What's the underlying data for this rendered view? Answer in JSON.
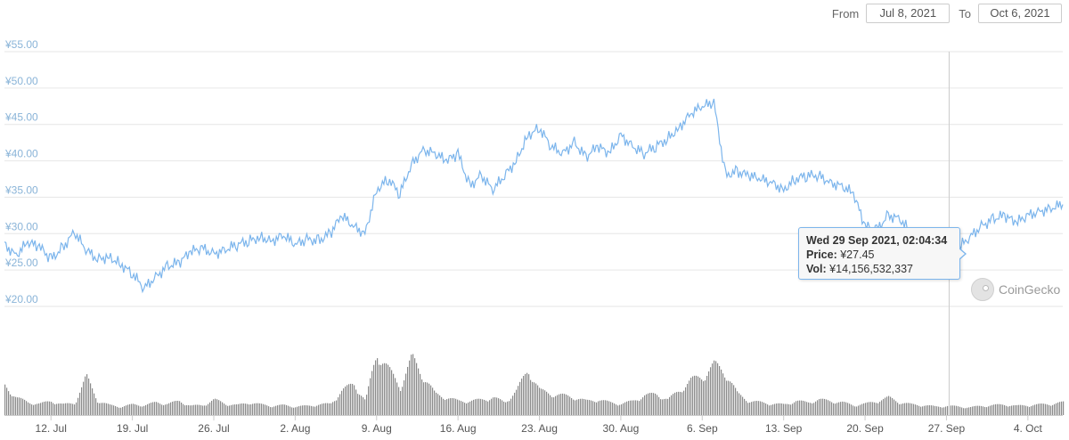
{
  "range_selector": {
    "from_label": "From",
    "from_value": "Jul 8, 2021",
    "to_label": "To",
    "to_value": "Oct 6, 2021"
  },
  "tooltip": {
    "title": "Wed 29 Sep 2021, 02:04:34",
    "price_label": "Price:",
    "price_value": "¥27.45",
    "vol_label": "Vol:",
    "vol_value": "¥14,156,532,337"
  },
  "watermark": {
    "text": "CoinGecko",
    "icon": "gecko-icon"
  },
  "colors": {
    "price_line": "#7cb5ec",
    "volume": "#8a8a8a",
    "grid": "#e6e6e6",
    "crosshair": "#cccccc"
  },
  "chart_data": [
    {
      "type": "line",
      "title": "",
      "xlabel": "",
      "ylabel": "",
      "ylim": [
        20,
        55
      ],
      "y_ticks": [
        "¥20.00",
        "¥25.00",
        "¥30.00",
        "¥35.00",
        "¥40.00",
        "¥45.00",
        "¥50.00",
        "¥55.00"
      ],
      "y_tick_values": [
        20,
        25,
        30,
        35,
        40,
        45,
        50,
        55
      ],
      "x_ticks": [
        "12. Jul",
        "19. Jul",
        "26. Jul",
        "2. Aug",
        "9. Aug",
        "16. Aug",
        "23. Aug",
        "30. Aug",
        "6. Sep",
        "13. Sep",
        "20. Sep",
        "27. Sep",
        "4. Oct"
      ],
      "x_tick_days": [
        4,
        11,
        18,
        25,
        32,
        39,
        46,
        53,
        60,
        67,
        74,
        81,
        88
      ],
      "xlim_days": [
        0,
        91
      ],
      "grid": true,
      "series": [
        {
          "x_days": [
            0,
            1,
            2,
            3,
            4,
            5,
            6,
            7,
            8,
            9,
            10,
            11,
            12,
            13,
            14,
            15,
            16,
            17,
            18,
            19,
            20,
            21,
            22,
            23,
            24,
            25,
            26,
            27,
            28,
            29,
            30,
            31,
            32,
            33,
            34,
            35,
            36,
            37,
            38,
            39,
            40,
            41,
            42,
            43,
            44,
            45,
            46,
            47,
            48,
            49,
            50,
            51,
            52,
            53,
            54,
            55,
            56,
            57,
            58,
            59,
            60,
            61,
            62,
            63,
            64,
            65,
            66,
            67,
            68,
            69,
            70,
            71,
            72,
            73,
            74,
            75,
            76,
            77,
            78,
            79,
            80,
            81,
            82,
            83,
            84,
            85,
            86,
            87,
            88,
            89,
            90,
            91
          ],
          "values": [
            28.5,
            27.0,
            28.8,
            28.2,
            26.5,
            28.0,
            30.2,
            27.8,
            26.5,
            26.8,
            25.8,
            24.5,
            22.5,
            24.0,
            25.5,
            26.0,
            27.5,
            28.0,
            27.2,
            27.8,
            28.5,
            29.0,
            29.5,
            29.0,
            29.8,
            28.5,
            29.2,
            29.0,
            30.0,
            32.5,
            31.0,
            30.0,
            36.0,
            37.5,
            35.5,
            39.5,
            41.5,
            41.0,
            40.0,
            41.0,
            36.5,
            38.0,
            36.0,
            38.0,
            40.0,
            43.5,
            44.5,
            42.0,
            41.0,
            42.5,
            40.5,
            42.0,
            41.0,
            43.5,
            42.0,
            41.0,
            42.0,
            43.0,
            44.5,
            46.5,
            47.5,
            48.0,
            38.0,
            38.5,
            38.0,
            37.5,
            37.0,
            36.0,
            37.5,
            38.0,
            38.0,
            37.0,
            36.5,
            35.5,
            31.0,
            30.5,
            32.5,
            32.0,
            30.0,
            29.0,
            28.0,
            27.45,
            28.0,
            29.5,
            31.0,
            32.0,
            32.5,
            31.5,
            32.5,
            33.0,
            33.5,
            34.0
          ]
        }
      ]
    },
    {
      "type": "bar",
      "title": "",
      "xlabel": "",
      "ylabel": "",
      "ylim": [
        0,
        1
      ],
      "x_days": [
        0,
        1,
        2,
        3,
        4,
        5,
        6,
        7,
        8,
        9,
        10,
        11,
        12,
        13,
        14,
        15,
        16,
        17,
        18,
        19,
        20,
        21,
        22,
        23,
        24,
        25,
        26,
        27,
        28,
        29,
        30,
        31,
        32,
        33,
        34,
        35,
        36,
        37,
        38,
        39,
        40,
        41,
        42,
        43,
        44,
        45,
        46,
        47,
        48,
        49,
        50,
        51,
        52,
        53,
        54,
        55,
        56,
        57,
        58,
        59,
        60,
        61,
        62,
        63,
        64,
        65,
        66,
        67,
        68,
        69,
        70,
        71,
        72,
        73,
        74,
        75,
        76,
        77,
        78,
        79,
        80,
        81,
        82,
        83,
        84,
        85,
        86,
        87,
        88,
        89,
        90,
        91
      ],
      "values": [
        0.42,
        0.25,
        0.18,
        0.16,
        0.2,
        0.15,
        0.17,
        0.55,
        0.2,
        0.14,
        0.12,
        0.15,
        0.14,
        0.18,
        0.16,
        0.2,
        0.13,
        0.14,
        0.22,
        0.16,
        0.14,
        0.18,
        0.15,
        0.13,
        0.14,
        0.12,
        0.13,
        0.15,
        0.16,
        0.35,
        0.45,
        0.2,
        0.9,
        0.65,
        0.4,
        0.82,
        0.55,
        0.3,
        0.25,
        0.2,
        0.2,
        0.22,
        0.25,
        0.18,
        0.35,
        0.65,
        0.35,
        0.3,
        0.28,
        0.25,
        0.2,
        0.22,
        0.18,
        0.16,
        0.2,
        0.28,
        0.3,
        0.22,
        0.35,
        0.5,
        0.55,
        0.72,
        0.6,
        0.3,
        0.2,
        0.18,
        0.16,
        0.15,
        0.2,
        0.18,
        0.22,
        0.2,
        0.18,
        0.14,
        0.16,
        0.2,
        0.25,
        0.18,
        0.15,
        0.14,
        0.12,
        0.13,
        0.12,
        0.11,
        0.13,
        0.14,
        0.15,
        0.13,
        0.14,
        0.15,
        0.16,
        0.18
      ]
    }
  ]
}
